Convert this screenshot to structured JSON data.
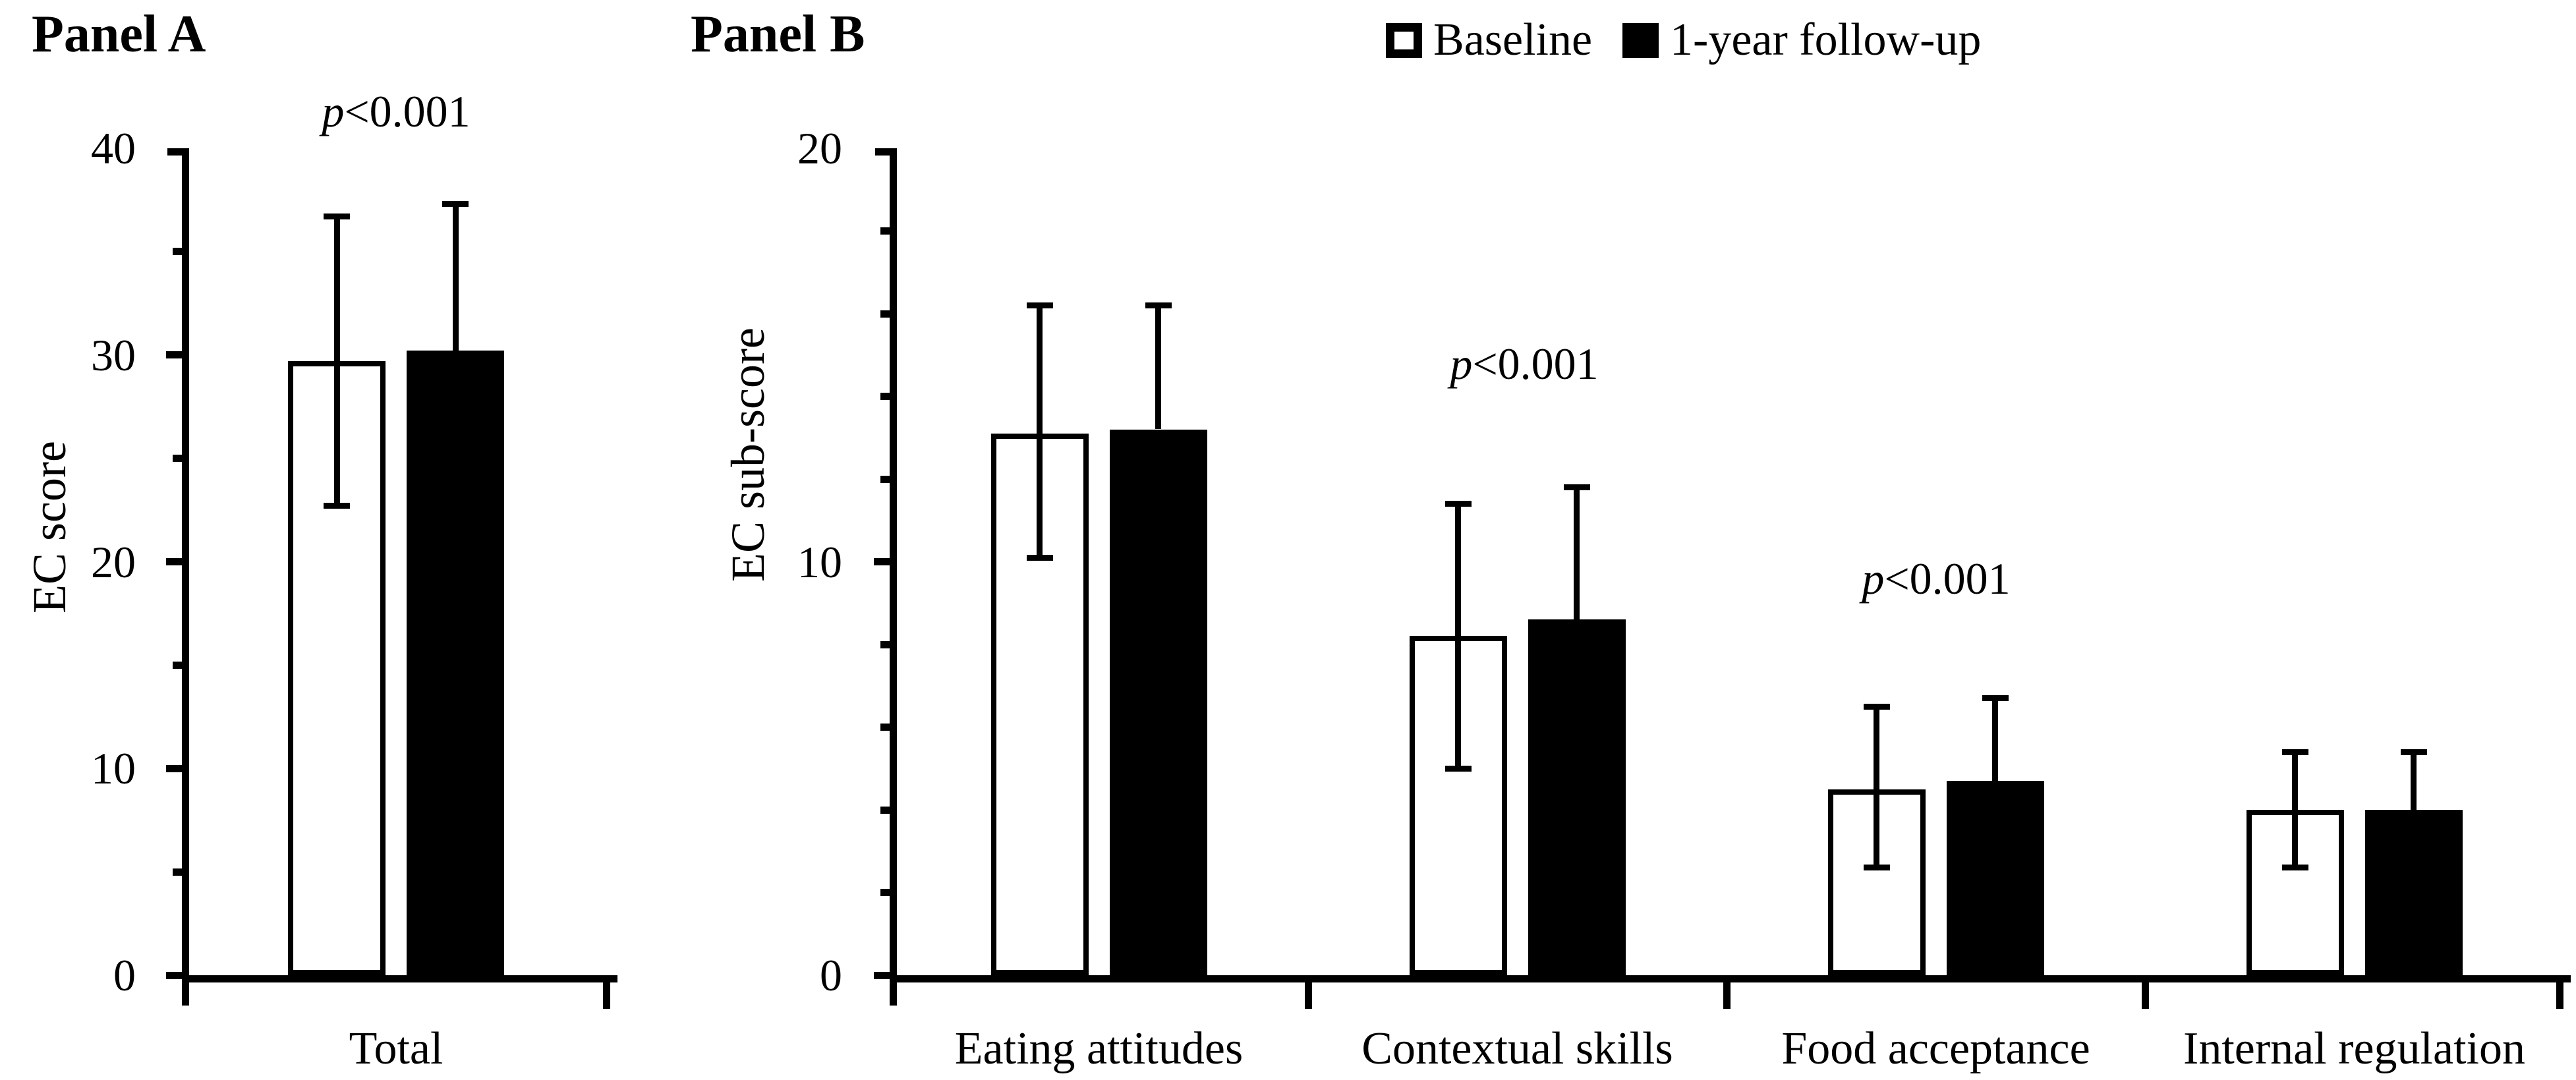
{
  "legend": {
    "items": [
      {
        "label": "Baseline",
        "fill": "#ffffff"
      },
      {
        "label": "1-year follow-up",
        "fill": "#000000"
      }
    ]
  },
  "chart_data": [
    {
      "type": "bar",
      "title": "Panel A",
      "ylabel": "EC score",
      "ylim": [
        0,
        40
      ],
      "ytick_interval": 10,
      "ytick_minor_interval": 5,
      "grid": false,
      "categories": [
        "Total"
      ],
      "series": [
        {
          "name": "Baseline",
          "fill": "#ffffff",
          "values": [
            29.7
          ],
          "err_up": [
            7.0
          ],
          "err_down": [
            7.0
          ]
        },
        {
          "name": "1-year follow-up",
          "fill": "#000000",
          "values": [
            30.2
          ],
          "err_up": [
            7.1
          ],
          "err_down": [
            null
          ]
        }
      ],
      "annotations": [
        {
          "text": "p<0.001",
          "category": 0,
          "y": 40.6,
          "dx": 0
        }
      ]
    },
    {
      "type": "bar",
      "title": "Panel B",
      "ylabel": "EC sub-score",
      "ylim": [
        0,
        20
      ],
      "ytick_interval": 10,
      "ytick_minor_interval": 2,
      "grid": false,
      "categories": [
        "Eating attitudes",
        "Contextual skills",
        "Food acceptance",
        "Internal regulation"
      ],
      "series": [
        {
          "name": "Baseline",
          "fill": "#ffffff",
          "values": [
            13.1,
            8.2,
            4.5,
            4.0
          ],
          "err_up": [
            3.1,
            3.2,
            2.0,
            1.4
          ],
          "err_down": [
            3.0,
            3.2,
            1.9,
            1.4
          ]
        },
        {
          "name": "1-year follow-up",
          "fill": "#000000",
          "values": [
            13.2,
            8.6,
            4.7,
            4.0
          ],
          "err_up": [
            3.0,
            3.2,
            2.0,
            1.4
          ],
          "err_down": [
            null,
            null,
            null,
            null
          ]
        }
      ],
      "annotations": [
        {
          "text": "p<0.001",
          "category": 1,
          "y": 14.2,
          "dx": 10
        },
        {
          "text": "p<0.001",
          "category": 2,
          "y": 9.0,
          "dx": 0
        }
      ]
    }
  ]
}
